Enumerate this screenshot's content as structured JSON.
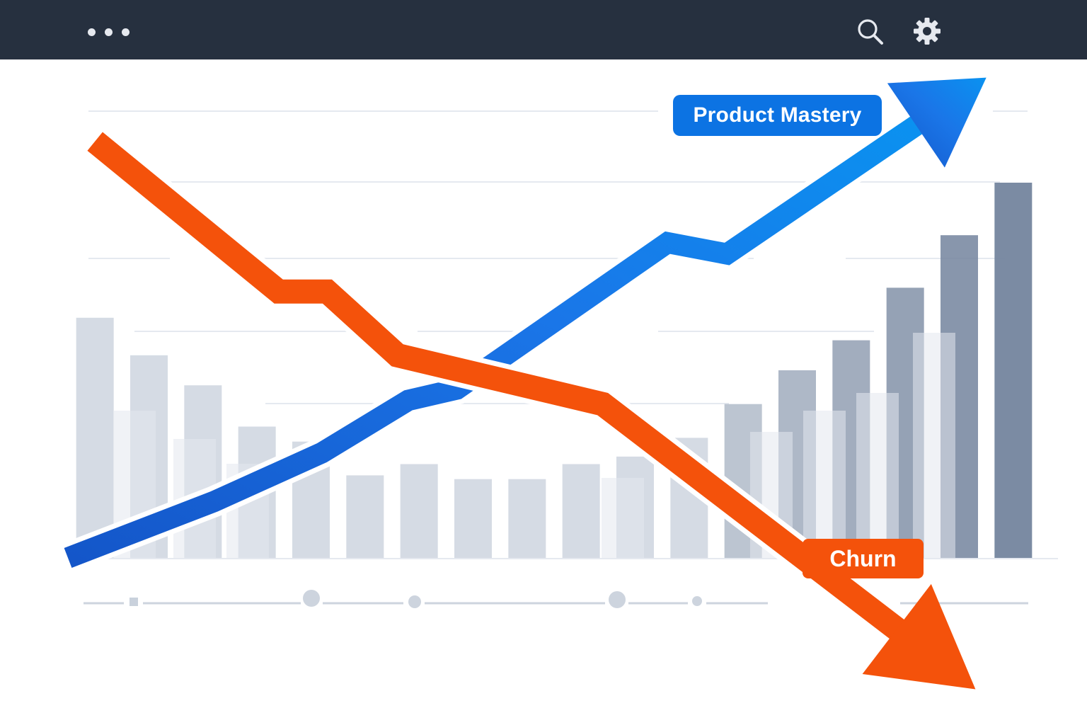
{
  "toolbar": {
    "menu_icon": "more-horizontal-icon",
    "search_icon": "search-icon",
    "settings_icon": "gear-icon",
    "icon_color": "#e6e9ef",
    "background": "#26303f"
  },
  "chart_data": {
    "type": "line",
    "title": "",
    "xlabel": "",
    "ylabel": "",
    "x": [
      1,
      2,
      3,
      4,
      5,
      6,
      7,
      8,
      9,
      10,
      11,
      12,
      13,
      14,
      15,
      16,
      17,
      18
    ],
    "xlim": [
      0.5,
      18.5
    ],
    "ylim": [
      0,
      100
    ],
    "grid": true,
    "series": [
      {
        "name": "Product Mastery",
        "kind": "line-arrow",
        "color": "#1a76e8",
        "label_color": "#0c73e3",
        "x": [
          0.5,
          3.2,
          5.2,
          6.8,
          7.7,
          11.6,
          12.7,
          17.5
        ],
        "values": [
          0,
          15,
          28,
          42,
          45,
          84,
          81,
          128
        ]
      },
      {
        "name": "Churn",
        "kind": "line-arrow",
        "color": "#f4520b",
        "label_color": "#f4520b",
        "x": [
          1,
          4.4,
          5.3,
          6.6,
          10.4,
          17.3
        ],
        "values": [
          111,
          71,
          71,
          54,
          41,
          -35
        ]
      },
      {
        "kind": "bar",
        "color": "#d3d9e3",
        "highlight_color": "#74859e",
        "highlight_from": 13,
        "values": [
          64,
          54,
          46,
          35,
          31,
          22,
          25,
          21,
          21,
          25,
          27,
          32,
          41,
          50,
          58,
          72,
          86,
          100
        ]
      }
    ]
  }
}
